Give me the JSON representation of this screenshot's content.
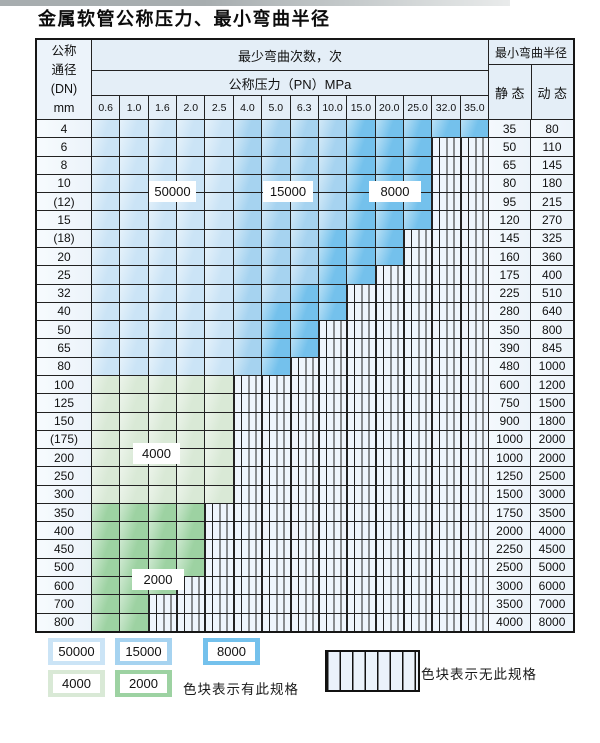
{
  "title": "金属软管公称压力、最小弯曲半径",
  "table": {
    "header": {
      "dn_lines": [
        "公称",
        "通径",
        "(DN)",
        "mm"
      ],
      "bend_cycles_label": "最少弯曲次数，次",
      "pressure_label": "公称压力（PN）MPa",
      "pressure_columns": [
        "0.6",
        "1.0",
        "1.6",
        "2.0",
        "2.5",
        "4.0",
        "5.0",
        "6.3",
        "10.0",
        "15.0",
        "20.0",
        "25.0",
        "32.0",
        "35.0"
      ],
      "min_bend_radius_label": "最小弯曲半径",
      "static_label": "静 态",
      "dynamic_label": "动 态"
    },
    "cell_legend_note": "cells string: one code per pressure column — a=50000 cycles, b=15000 cycles, c=8000 cycles, d=4000 cycles, e=2000 cycles, h=no-spec (hatched)",
    "rows": [
      {
        "dn": "4",
        "cells": "aaaaabbbbccccc",
        "static": "35",
        "dynamic": "80"
      },
      {
        "dn": "6",
        "cells": "aaaaabbbbccchh",
        "static": "50",
        "dynamic": "110"
      },
      {
        "dn": "8",
        "cells": "aaaaabbbbccchh",
        "static": "65",
        "dynamic": "145"
      },
      {
        "dn": "10",
        "cells": "aaaaabbbbccchh",
        "static": "80",
        "dynamic": "180"
      },
      {
        "dn": "(12)",
        "cells": "aaaaabbbbccchh",
        "static": "95",
        "dynamic": "215"
      },
      {
        "dn": "15",
        "cells": "aaaaabbbbccchh",
        "static": "120",
        "dynamic": "270"
      },
      {
        "dn": "(18)",
        "cells": "aaaaabbbccchhh",
        "static": "145",
        "dynamic": "325"
      },
      {
        "dn": "20",
        "cells": "aaaaabbbccchhh",
        "static": "160",
        "dynamic": "360"
      },
      {
        "dn": "25",
        "cells": "aaaaabbbcchhhh",
        "static": "175",
        "dynamic": "400"
      },
      {
        "dn": "32",
        "cells": "aaaaabbcchhhhh",
        "static": "225",
        "dynamic": "510"
      },
      {
        "dn": "40",
        "cells": "aaaaabccchhhhh",
        "static": "280",
        "dynamic": "640"
      },
      {
        "dn": "50",
        "cells": "aaaaabcchhhhhh",
        "static": "350",
        "dynamic": "800"
      },
      {
        "dn": "65",
        "cells": "aaaaabcchhhhhh",
        "static": "390",
        "dynamic": "845"
      },
      {
        "dn": "80",
        "cells": "aaaaabchhhhhhh",
        "static": "480",
        "dynamic": "1000"
      },
      {
        "dn": "100",
        "cells": "dddddhhhhhhhhh",
        "static": "600",
        "dynamic": "1200"
      },
      {
        "dn": "125",
        "cells": "dddddhhhhhhhhh",
        "static": "750",
        "dynamic": "1500"
      },
      {
        "dn": "150",
        "cells": "dddddhhhhhhhhh",
        "static": "900",
        "dynamic": "1800"
      },
      {
        "dn": "(175)",
        "cells": "dddddhhhhhhhhh",
        "static": "1000",
        "dynamic": "2000"
      },
      {
        "dn": "200",
        "cells": "dddddhhhhhhhhh",
        "static": "1000",
        "dynamic": "2000"
      },
      {
        "dn": "250",
        "cells": "dddddhhhhhhhhh",
        "static": "1250",
        "dynamic": "2500"
      },
      {
        "dn": "300",
        "cells": "dddddhhhhhhhhh",
        "static": "1500",
        "dynamic": "3000"
      },
      {
        "dn": "350",
        "cells": "eeeehhhhhhhhhh",
        "static": "1750",
        "dynamic": "3500"
      },
      {
        "dn": "400",
        "cells": "eeeehhhhhhhhhh",
        "static": "2000",
        "dynamic": "4000"
      },
      {
        "dn": "450",
        "cells": "eeeehhhhhhhhhh",
        "static": "2250",
        "dynamic": "4500"
      },
      {
        "dn": "500",
        "cells": "eeeehhhhhhhhhh",
        "static": "2500",
        "dynamic": "5000"
      },
      {
        "dn": "600",
        "cells": "eeehhhhhhhhhhh",
        "static": "3000",
        "dynamic": "6000"
      },
      {
        "dn": "700",
        "cells": "eehhhhhhhhhhhh",
        "static": "3500",
        "dynamic": "7000"
      },
      {
        "dn": "800",
        "cells": "eehhhhhhhhhhhh",
        "static": "4000",
        "dynamic": "8000"
      }
    ]
  },
  "regions": {
    "a": {
      "cycles": "50000",
      "color": "#cbe4f6"
    },
    "b": {
      "cycles": "15000",
      "color": "#a6d3f0"
    },
    "c": {
      "cycles": "8000",
      "color": "#74c1ec"
    },
    "d": {
      "cycles": "4000",
      "color": "#d9e9d6"
    },
    "e": {
      "cycles": "2000",
      "color": "#9dd2a2"
    }
  },
  "overlay_labels": [
    {
      "text": "50000"
    },
    {
      "text": "15000"
    },
    {
      "text": "8000"
    },
    {
      "text": "4000"
    },
    {
      "text": "2000"
    }
  ],
  "legend": {
    "items": [
      {
        "region": "a",
        "value": "50000"
      },
      {
        "region": "b",
        "value": "15000"
      },
      {
        "region": "c",
        "value": "8000"
      },
      {
        "region": "d",
        "value": "4000"
      },
      {
        "region": "e",
        "value": "2000"
      }
    ],
    "has_spec_label": "色块表示有此规格",
    "no_spec_label": "色块表示无此规格"
  },
  "colors": {
    "grid_line": "#222222",
    "header_bg": "#e4eef7",
    "value_cell_bg": "#ecf3fa",
    "hatch_bg": "#eef5fc"
  }
}
